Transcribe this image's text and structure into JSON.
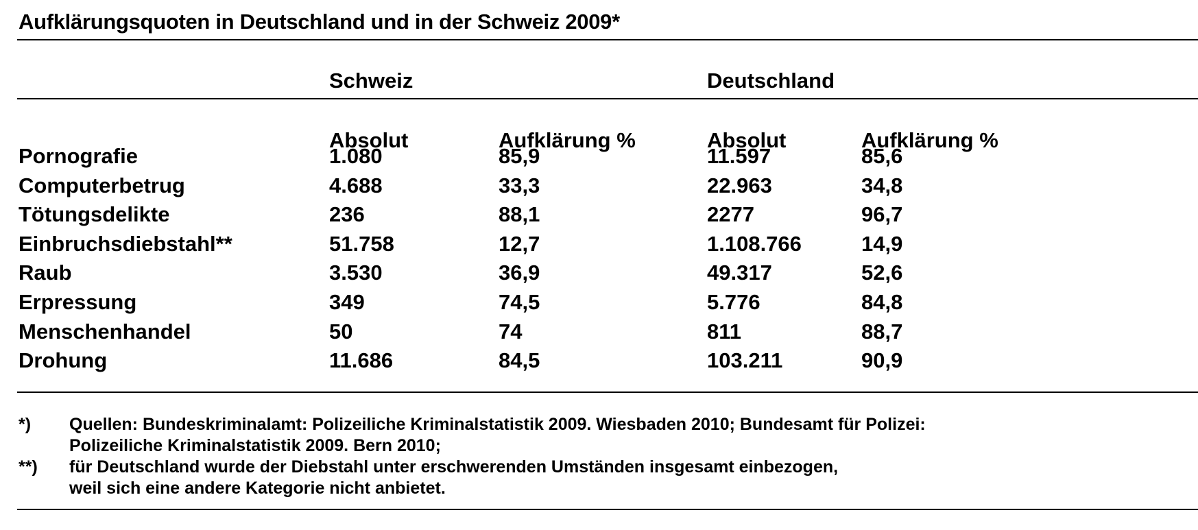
{
  "title": "Aufklärungsquoten in Deutschland und in der Schweiz 2009*",
  "groups": {
    "schweiz": "Schweiz",
    "deutschland": "Deutschland"
  },
  "columns": {
    "ch_abs": "Absolut",
    "ch_pct": "Aufklärung %",
    "de_abs": "Absolut",
    "de_pct": "Aufklärung %"
  },
  "rows": [
    {
      "label": "Pornografie",
      "ch_abs": "1.080",
      "ch_pct": "85,9",
      "de_abs": "11.597",
      "de_pct": "85,6"
    },
    {
      "label": "Computerbetrug",
      "ch_abs": "4.688",
      "ch_pct": "33,3",
      "de_abs": "22.963",
      "de_pct": "34,8"
    },
    {
      "label": "Tötungsdelikte",
      "ch_abs": "236",
      "ch_pct": "88,1",
      "de_abs": "2277",
      "de_pct": "96,7"
    },
    {
      "label": "Einbruchsdiebstahl**",
      "ch_abs": "51.758",
      "ch_pct": "12,7",
      "de_abs": "1.108.766",
      "de_pct": "14,9"
    },
    {
      "label": "Raub",
      "ch_abs": "3.530",
      "ch_pct": "36,9",
      "de_abs": "49.317",
      "de_pct": "52,6"
    },
    {
      "label": "Erpressung",
      "ch_abs": "349",
      "ch_pct": "74,5",
      "de_abs": "5.776",
      "de_pct": "84,8"
    },
    {
      "label": "Menschenhandel",
      "ch_abs": "50",
      "ch_pct": "74",
      "de_abs": "811",
      "de_pct": "88,7"
    },
    {
      "label": "Drohung",
      "ch_abs": "11.686",
      "ch_pct": "84,5",
      "de_abs": "103.211",
      "de_pct": "90,9"
    }
  ],
  "footnotes": [
    {
      "mark": "*)",
      "text": "Quellen: Bundeskriminalamt: Polizeiliche Kriminalstatistik 2009. Wiesbaden 2010; Bundesamt für Polizei:\nPolizeiliche Kriminalstatistik 2009. Bern 2010;"
    },
    {
      "mark": "**)",
      "text": "für Deutschland wurde der Diebstahl unter erschwerenden Umständen insgesamt einbezogen,\nweil sich eine andere Kategorie nicht anbietet."
    }
  ]
}
